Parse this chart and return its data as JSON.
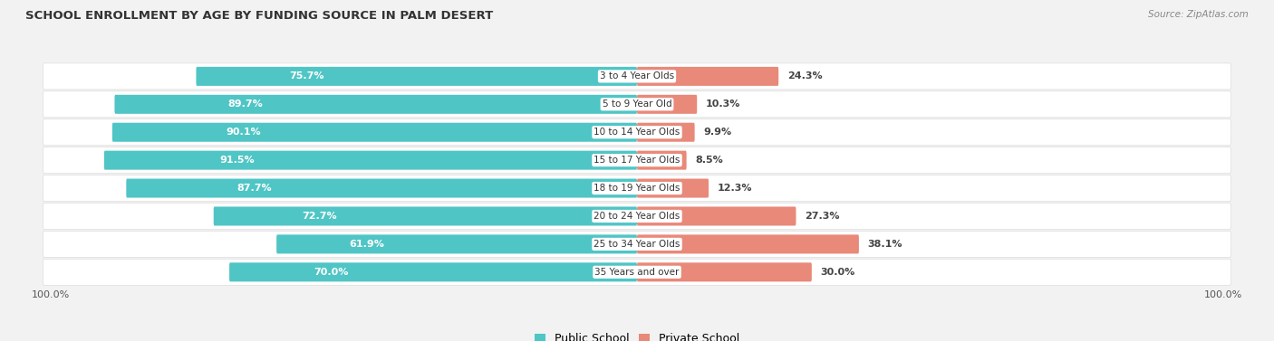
{
  "title": "SCHOOL ENROLLMENT BY AGE BY FUNDING SOURCE IN PALM DESERT",
  "source": "Source: ZipAtlas.com",
  "categories": [
    "3 to 4 Year Olds",
    "5 to 9 Year Old",
    "10 to 14 Year Olds",
    "15 to 17 Year Olds",
    "18 to 19 Year Olds",
    "20 to 24 Year Olds",
    "25 to 34 Year Olds",
    "35 Years and over"
  ],
  "public_pct": [
    75.7,
    89.7,
    90.1,
    91.5,
    87.7,
    72.7,
    61.9,
    70.0
  ],
  "private_pct": [
    24.3,
    10.3,
    9.9,
    8.5,
    12.3,
    27.3,
    38.1,
    30.0
  ],
  "public_color": "#50C5C5",
  "private_color": "#E8897A",
  "bg_color": "#F2F2F2",
  "row_bg_color": "#FFFFFF",
  "title_color": "#333333",
  "source_color": "#888888",
  "legend_public": "Public School",
  "legend_private": "Private School",
  "axis_label": "100.0%"
}
